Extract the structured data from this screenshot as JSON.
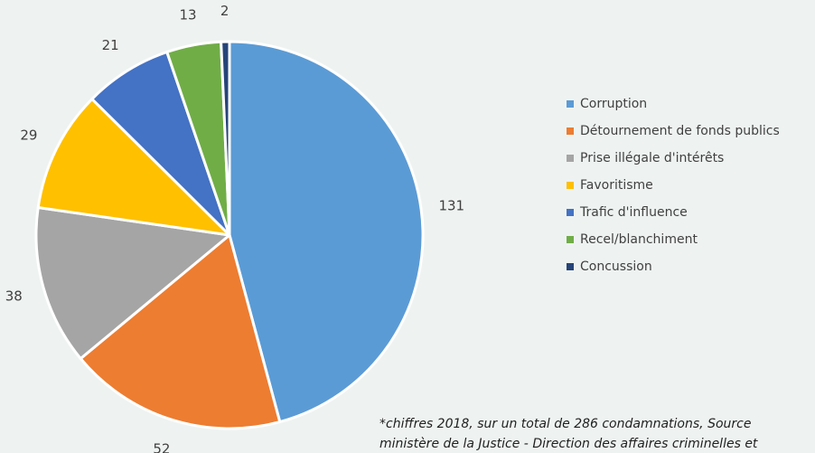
{
  "chart_data": {
    "type": "pie",
    "categories": [
      "Corruption",
      "Détournement de fonds publics",
      "Prise illégale d'intérêts",
      "Favoritisme",
      "Trafic d'influence",
      "Recel/blanchiment",
      "Concussion"
    ],
    "values": [
      131,
      52,
      38,
      29,
      21,
      13,
      2
    ],
    "data_labels": [
      "131",
      "52",
      "38",
      "29",
      "21",
      "13",
      "2"
    ],
    "colors": [
      "#5b9bd5",
      "#ed7d31",
      "#a5a5a5",
      "#ffc000",
      "#4472c4",
      "#70ad47",
      "#264478"
    ],
    "legend_position": "right",
    "start_angle_deg": 0,
    "direction": "clockwise"
  },
  "footnote": "*chiffres 2018, sur un total de 286 condamnations, Source\nministère de la Justice - Direction des affaires criminelles et"
}
